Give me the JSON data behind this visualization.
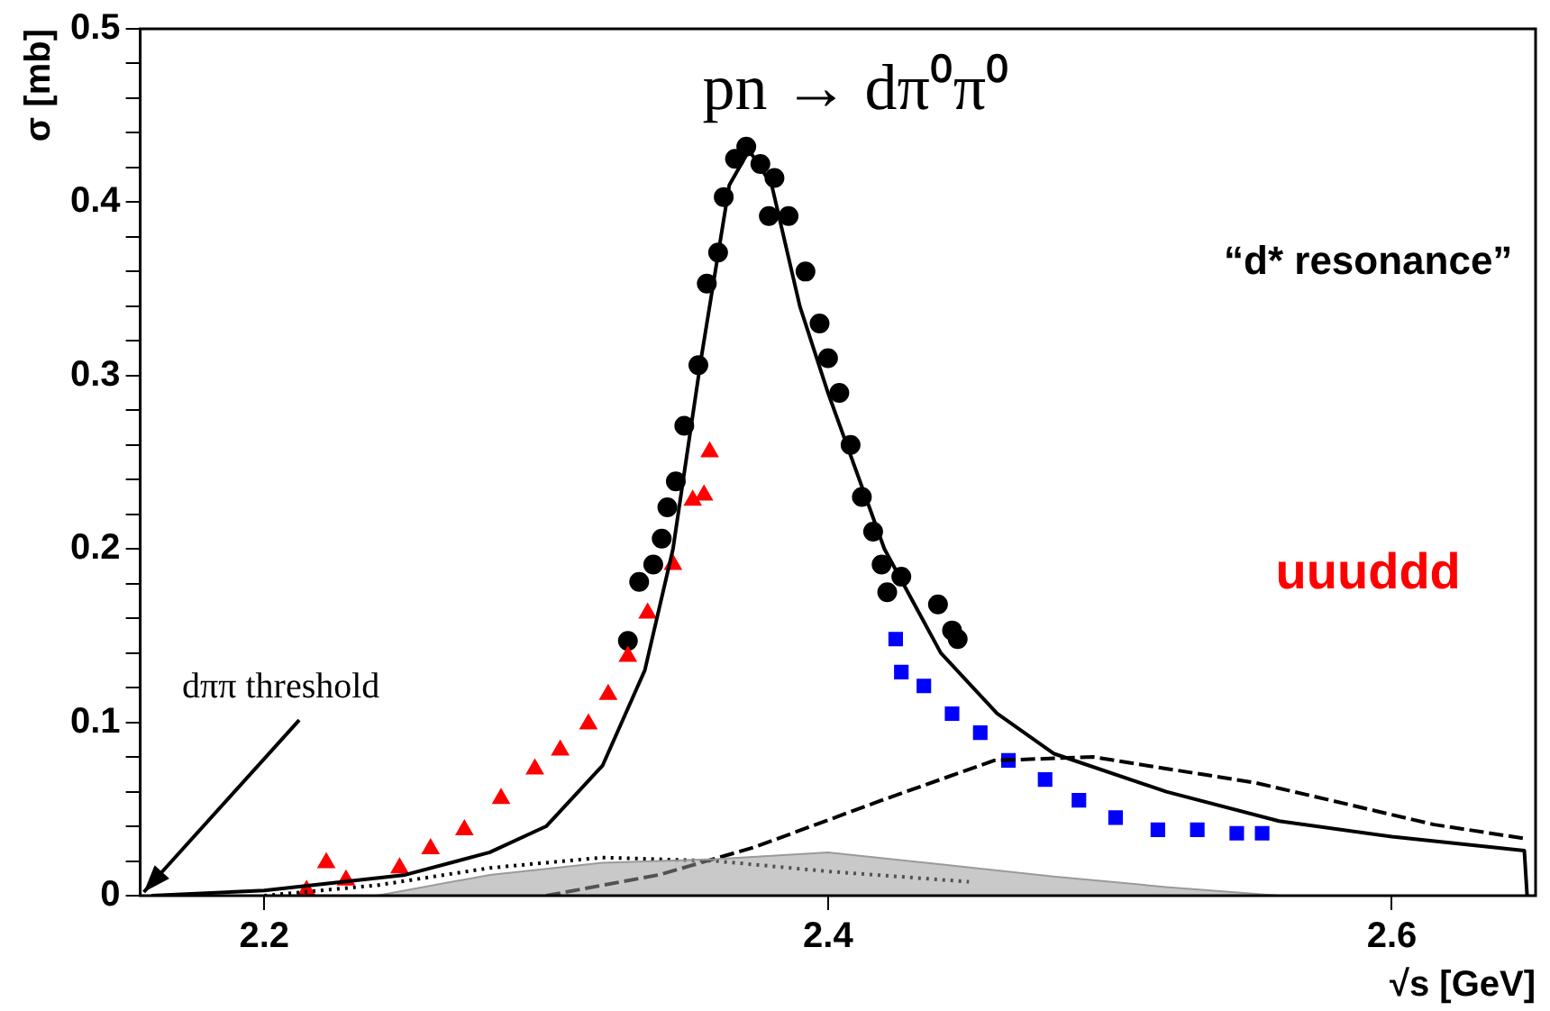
{
  "chart_data": {
    "type": "scatter",
    "title": "pn → dπ⁰π⁰",
    "xlabel": "√s [GeV]",
    "ylabel": "σ [mb]",
    "annotations": [
      "“d* resonance”",
      "uuuddd",
      "dππ threshold"
    ],
    "xlim": [
      2.156,
      2.651
    ],
    "xticks": [
      2.2,
      2.4,
      2.6
    ],
    "ylim": [
      0,
      0.5
    ],
    "yticks": [
      0,
      {
        "value": 0.02,
        "label": null
      },
      {
        "value": 0.04,
        "label": null
      },
      {
        "value": 0.06,
        "label": null
      },
      {
        "value": 0.08,
        "label": null
      },
      0.1,
      {
        "value": 0.12,
        "label": null
      },
      {
        "value": 0.14,
        "label": null
      },
      {
        "value": 0.16,
        "label": null
      },
      {
        "value": 0.18,
        "label": null
      },
      0.2,
      {
        "value": 0.22,
        "label": null
      },
      {
        "value": 0.24,
        "label": null
      },
      {
        "value": 0.26,
        "label": null
      },
      {
        "value": 0.28,
        "label": null
      },
      0.3,
      {
        "value": 0.32,
        "label": null
      },
      {
        "value": 0.34,
        "label": null
      },
      {
        "value": 0.36,
        "label": null
      },
      {
        "value": 0.38,
        "label": null
      },
      0.4,
      {
        "value": 0.42,
        "label": null
      },
      {
        "value": 0.44,
        "label": null
      },
      {
        "value": 0.46,
        "label": null
      },
      {
        "value": 0.48,
        "label": null
      },
      0.5
    ],
    "grid": false,
    "legend": false,
    "series": [
      {
        "type": "area",
        "color": "#9a9a9a",
        "x": [
          2.24,
          2.28,
          2.32,
          2.36,
          2.4,
          2.44,
          2.48,
          2.52,
          2.56
        ],
        "values": [
          0,
          0.012,
          0.019,
          0.021,
          0.025,
          0.018,
          0.011,
          0.005,
          0
        ]
      },
      {
        "type": "line",
        "line_style": "dotted",
        "marker": "none",
        "color": "#000000",
        "x": [
          2.2,
          2.24,
          2.28,
          2.32,
          2.36,
          2.4,
          2.45
        ],
        "values": [
          0,
          0.006,
          0.016,
          0.022,
          0.02,
          0.014,
          0.008
        ]
      },
      {
        "type": "line",
        "line_style": "dashed",
        "marker": "none",
        "color": "#000000",
        "x": [
          2.3,
          2.34,
          2.374,
          2.419,
          2.459,
          2.494,
          2.552,
          2.615,
          2.647
        ],
        "values": [
          0,
          0.012,
          0.028,
          0.055,
          0.078,
          0.08,
          0.065,
          0.041,
          0.033
        ]
      },
      {
        "type": "line",
        "line_style": "solid",
        "marker": "none",
        "color": "#000000",
        "x": [
          2.16,
          2.2,
          2.25,
          2.28,
          2.3,
          2.32,
          2.335,
          2.345,
          2.355,
          2.365,
          2.372,
          2.38,
          2.39,
          2.4,
          2.42,
          2.44,
          2.46,
          2.48,
          2.52,
          2.56,
          2.6,
          2.647,
          2.648
        ],
        "values": [
          0,
          0.003,
          0.012,
          0.025,
          0.04,
          0.075,
          0.13,
          0.2,
          0.31,
          0.41,
          0.43,
          0.41,
          0.34,
          0.29,
          0.2,
          0.14,
          0.105,
          0.082,
          0.06,
          0.043,
          0.034,
          0.026,
          0
        ]
      },
      {
        "marker": "triangle",
        "color": "#ff0000",
        "x": [
          2.215,
          2.222,
          2.229,
          2.248,
          2.259,
          2.271,
          2.284,
          2.296,
          2.305,
          2.315,
          2.322,
          2.329,
          2.336,
          2.345,
          2.352,
          2.356,
          2.358
        ],
        "values": [
          0.003,
          0.019,
          0.009,
          0.016,
          0.027,
          0.038,
          0.056,
          0.073,
          0.084,
          0.099,
          0.116,
          0.138,
          0.163,
          0.191,
          0.228,
          0.231,
          0.256
        ]
      },
      {
        "marker": "circle",
        "color": "#000000",
        "x": [
          2.329,
          2.333,
          2.338,
          2.341,
          2.343,
          2.346,
          2.349,
          2.354,
          2.357,
          2.361,
          2.363,
          2.367,
          2.371,
          2.376,
          2.379,
          2.381,
          2.386,
          2.392,
          2.397,
          2.4,
          2.404,
          2.408,
          2.412,
          2.416,
          2.419,
          2.421,
          2.426,
          2.439,
          2.444,
          2.446
        ],
        "values": [
          0.147,
          0.181,
          0.191,
          0.206,
          0.224,
          0.239,
          0.271,
          0.306,
          0.353,
          0.371,
          0.403,
          0.425,
          0.432,
          0.422,
          0.392,
          0.414,
          0.392,
          0.36,
          0.33,
          0.31,
          0.29,
          0.26,
          0.23,
          0.21,
          0.191,
          0.175,
          0.184,
          0.168,
          0.153,
          0.148
        ]
      },
      {
        "marker": "square",
        "color": "#0000ff",
        "x": [
          2.424,
          2.426,
          2.434,
          2.444,
          2.454,
          2.464,
          2.477,
          2.489,
          2.502,
          2.517,
          2.531,
          2.545,
          2.554
        ],
        "values": [
          0.148,
          0.129,
          0.121,
          0.105,
          0.094,
          0.078,
          0.067,
          0.055,
          0.045,
          0.038,
          0.038,
          0.036,
          0.036
        ]
      }
    ]
  }
}
